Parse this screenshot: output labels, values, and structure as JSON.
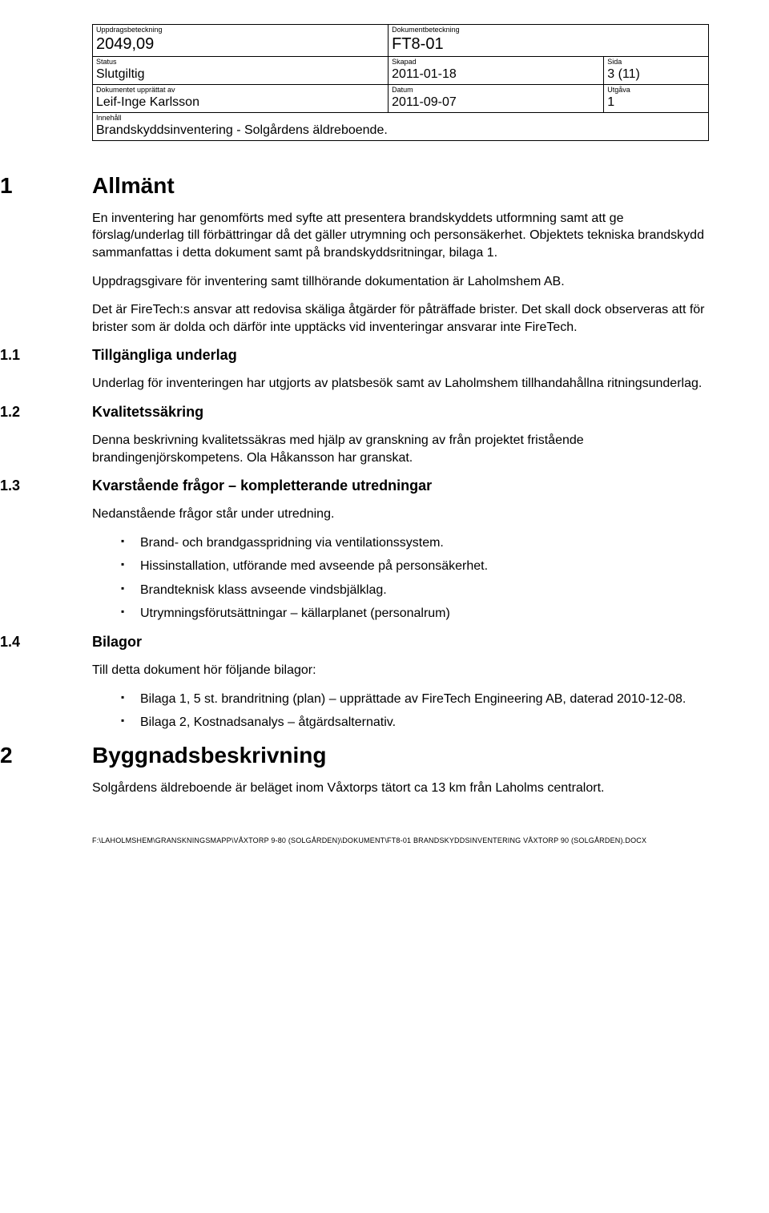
{
  "header": {
    "uppdragsbeteckning_label": "Uppdragsbeteckning",
    "uppdragsbeteckning_value": "2049,09",
    "dokumentbeteckning_label": "Dokumentbeteckning",
    "dokumentbeteckning_value": "FT8-01",
    "status_label": "Status",
    "status_value": "Slutgiltig",
    "skapad_label": "Skapad",
    "skapad_value": "2011-01-18",
    "sida_label": "Sida",
    "sida_value": "3 (11)",
    "dokumentet_label": "Dokumentet upprättat av",
    "dokumentet_value": "Leif-Inge Karlsson",
    "datum_label": "Datum",
    "datum_value": "2011-09-07",
    "utgava_label": "Utgåva",
    "utgava_value": "1",
    "innehall_label": "Innehåll",
    "innehall_value": "Brandskyddsinventering - Solgårdens äldreboende."
  },
  "s1": {
    "num": "1",
    "title": "Allmänt",
    "p1": "En inventering har genomförts med syfte att presentera brandskyddets utformning samt att ge förslag/underlag till förbättringar då det gäller utrymning och personsäkerhet. Objektets tekniska brandskydd sammanfattas i detta dokument samt på brandskyddsritningar, bilaga 1.",
    "p2": "Uppdragsgivare för inventering samt tillhörande dokumentation är Laholmshem AB.",
    "p3": "Det är FireTech:s ansvar att redovisa skäliga åtgärder för påträffade brister. Det skall dock observeras att för brister som är dolda och därför inte upptäcks vid inventeringar ansvarar inte FireTech."
  },
  "s1_1": {
    "num": "1.1",
    "title": "Tillgängliga underlag",
    "p1": "Underlag för inventeringen har utgjorts av platsbesök samt av Laholmshem tillhandahållna ritningsunderlag."
  },
  "s1_2": {
    "num": "1.2",
    "title": "Kvalitetssäkring",
    "p1": "Denna beskrivning kvalitetssäkras med hjälp av granskning av från projektet fristående brandingenjörskompetens. Ola Håkansson har granskat."
  },
  "s1_3": {
    "num": "1.3",
    "title": "Kvarstående frågor – kompletterande utredningar",
    "p1": "Nedanstående frågor står under utredning.",
    "bullets": [
      "Brand- och brandgasspridning via ventilationssystem.",
      "Hissinstallation, utförande med avseende på personsäkerhet.",
      "Brandteknisk klass avseende vindsbjälklag.",
      "Utrymningsförutsättningar – källarplanet (personalrum)"
    ]
  },
  "s1_4": {
    "num": "1.4",
    "title": "Bilagor",
    "p1": "Till detta dokument hör följande bilagor:",
    "bullets": [
      "Bilaga 1, 5 st. brandritning (plan) – upprättade av FireTech Engineering AB, daterad 2010-12-08.",
      "Bilaga 2, Kostnadsanalys – åtgärdsalternativ."
    ]
  },
  "s2": {
    "num": "2",
    "title": "Byggnadsbeskrivning",
    "p1": "Solgårdens äldreboende är beläget inom Våxtorps tätort ca 13 km från Laholms centralort."
  },
  "footer": {
    "path": "F:\\LAHOLMSHEM\\GRANSKNINGSMAPP\\VÅXTORP 9-80 (SOLGÅRDEN)\\DOKUMENT\\FT8-01 BRANDSKYDDSINVENTERING VÅXTORP 90 (SOLGÅRDEN).DOCX"
  }
}
